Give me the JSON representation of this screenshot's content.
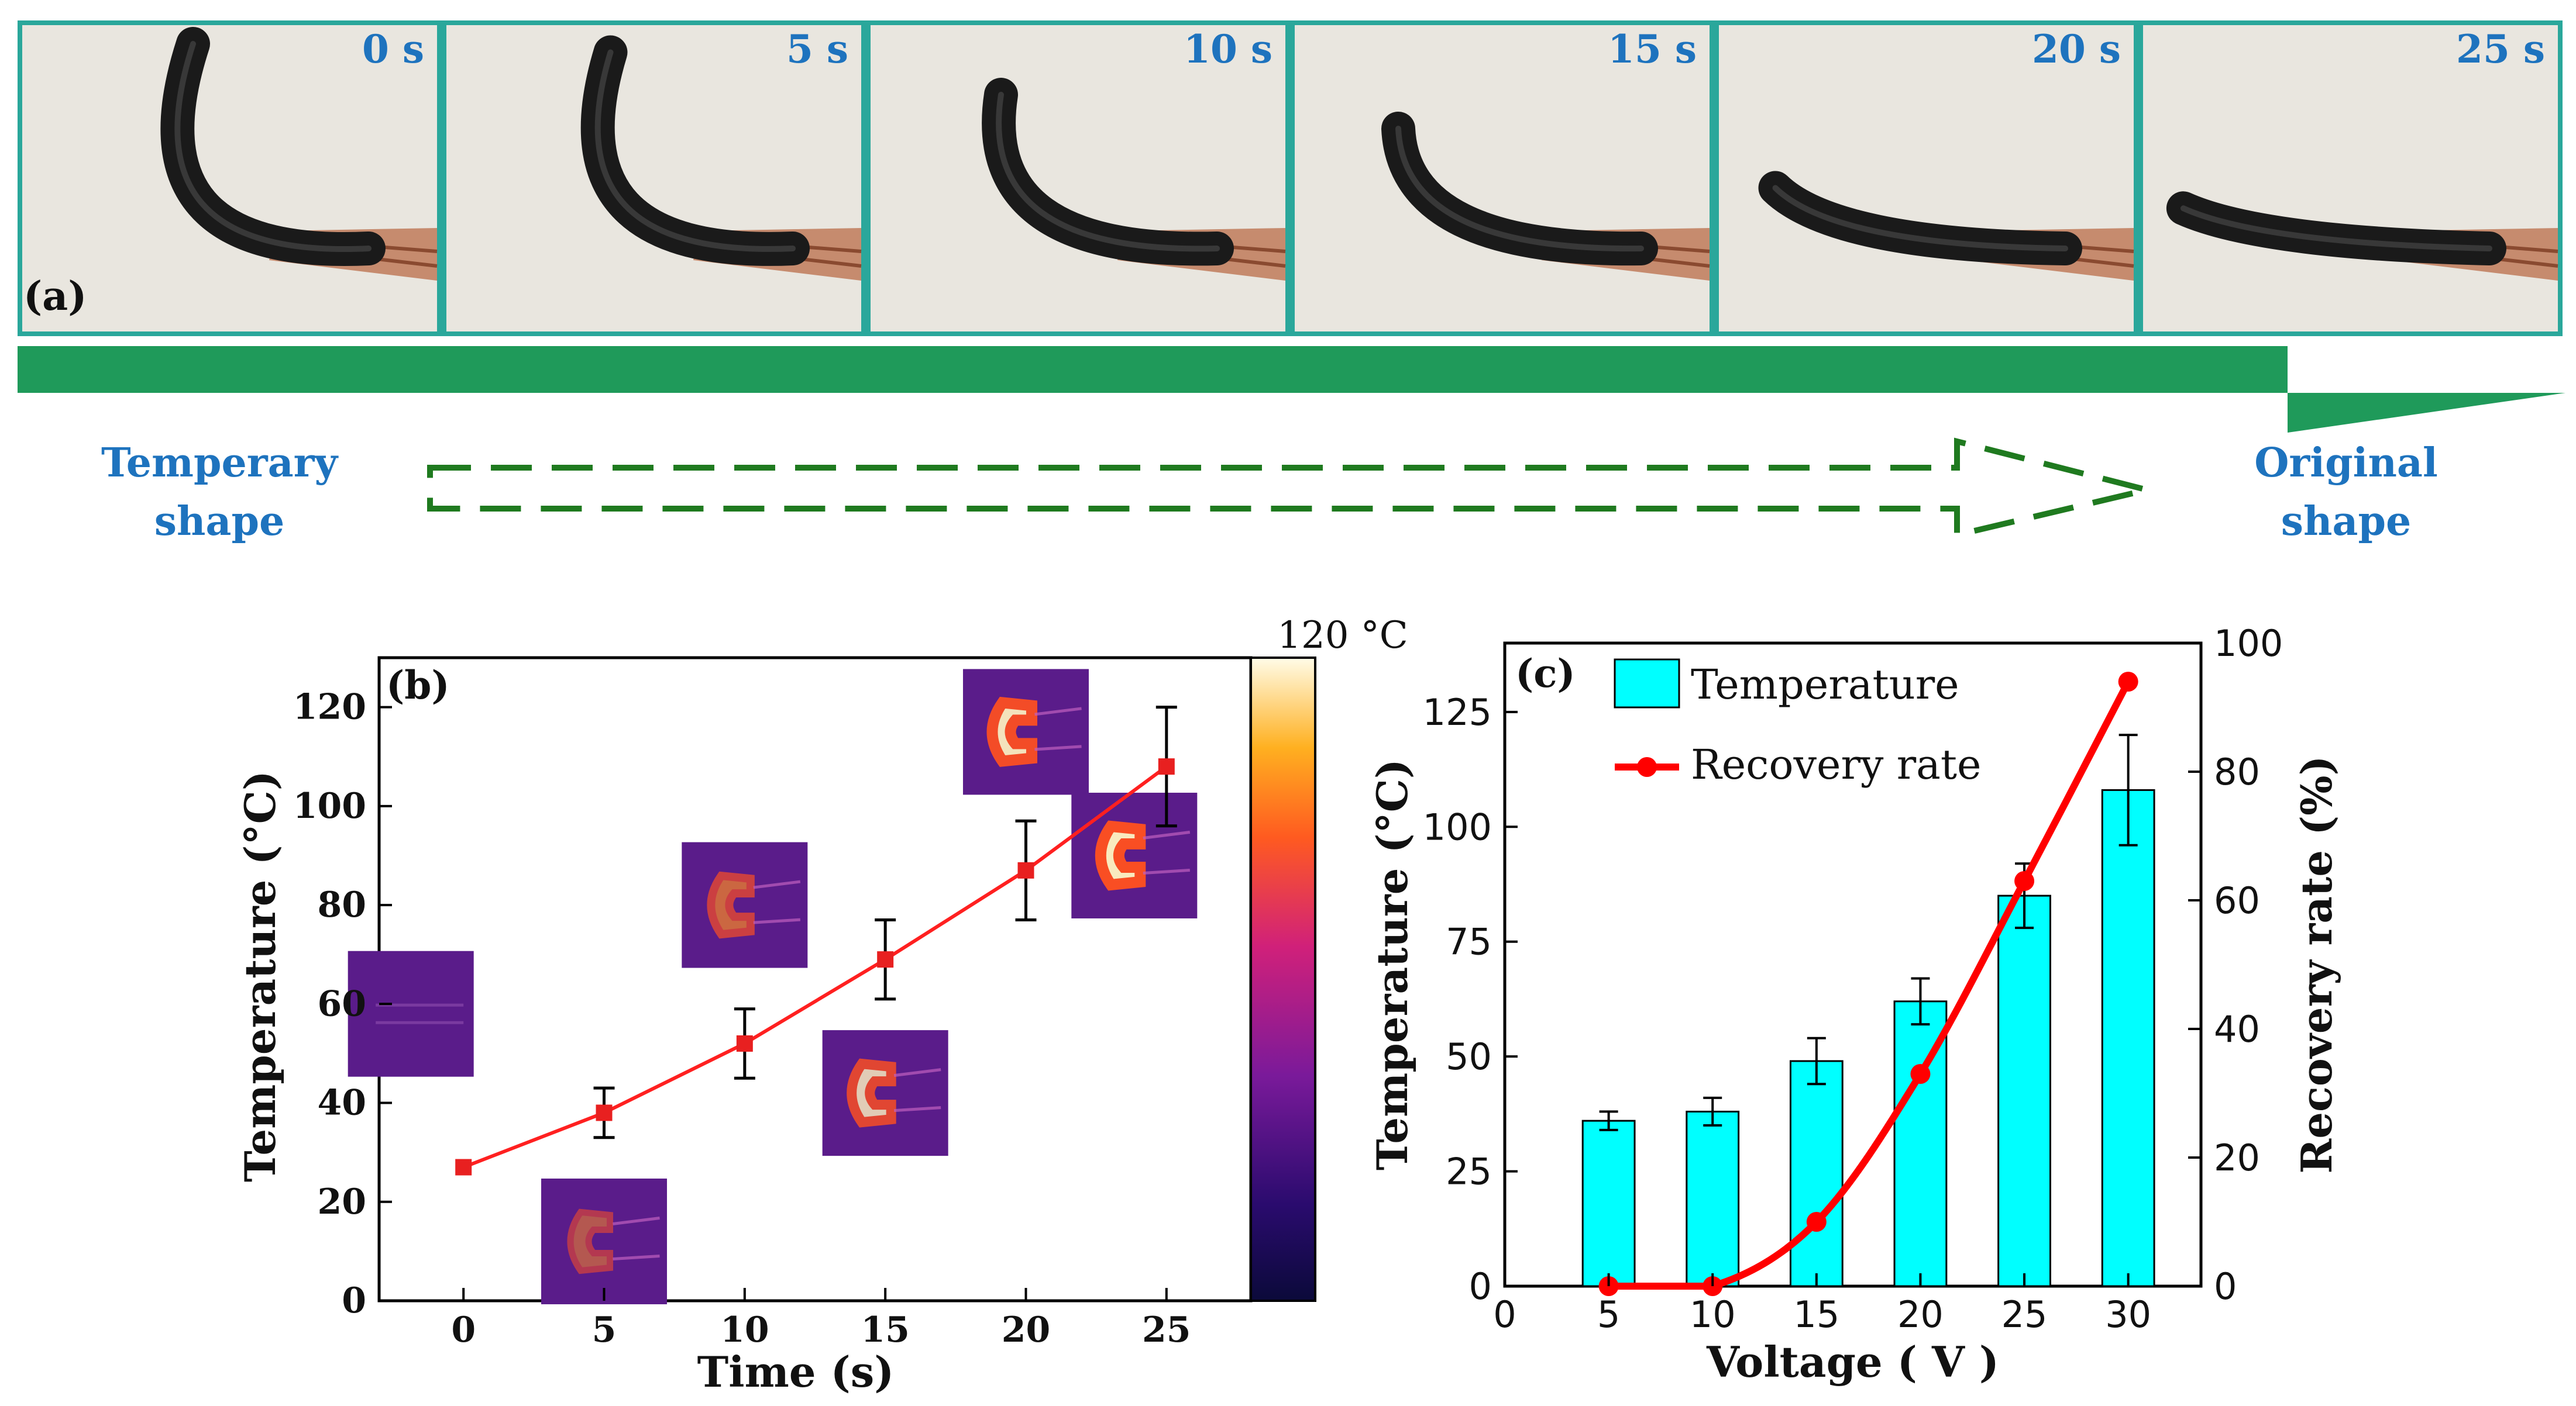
{
  "panel_a": {
    "label": "(a)",
    "frame_times": [
      "0 s",
      "5 s",
      "10 s",
      "15 s",
      "20 s",
      "25 s"
    ],
    "bend_fraction": [
      0.0,
      0.05,
      0.3,
      0.5,
      0.85,
      0.97
    ],
    "start_label": [
      "Temperary",
      "shape"
    ],
    "end_label": [
      "Original",
      "shape"
    ],
    "colors": {
      "frame_border": "#2aa79b",
      "arrow": "#1f9a5a",
      "dashed": "#1f7a1f",
      "time_text": "#1e73be",
      "label_text": "#1e73be",
      "paper": "#e9e6df"
    }
  },
  "chart_data": [
    {
      "id": "b",
      "type": "line",
      "panel_label": "(b)",
      "x": [
        0,
        5,
        10,
        15,
        20,
        25
      ],
      "values": [
        27,
        38,
        52,
        69,
        87,
        108
      ],
      "errors": [
        0,
        5,
        7,
        8,
        10,
        12
      ],
      "xlabel": "Time (s)",
      "ylabel": "Temperature (°C)",
      "xticks": [
        0,
        5,
        10,
        15,
        20,
        25
      ],
      "yticks": [
        0,
        20,
        40,
        60,
        80,
        100,
        120
      ],
      "xlim": [
        -3,
        28
      ],
      "ylim": [
        0,
        130
      ],
      "colorbar_label": "120 °C",
      "thermal_intensity": [
        0.05,
        0.35,
        0.55,
        0.75,
        0.9,
        0.95
      ],
      "colors": {
        "line": "#ff2020",
        "marker": "#e82020",
        "error": "#000000"
      }
    },
    {
      "id": "c",
      "type": "bar",
      "panel_label": "(c)",
      "categories": [
        5,
        10,
        15,
        20,
        25,
        30
      ],
      "series": [
        {
          "name": "Temperature",
          "axis": "left",
          "kind": "bar",
          "values": [
            36,
            38,
            49,
            62,
            85,
            108
          ],
          "errors": [
            2,
            3,
            5,
            5,
            7,
            12
          ]
        },
        {
          "name": "Recovery rate",
          "axis": "right",
          "kind": "line",
          "values": [
            0,
            0,
            10,
            33,
            63,
            94
          ]
        }
      ],
      "xlabel": "Voltage ( V )",
      "ylabel": "Temperature (°C)",
      "ylabel_right": "Recovery rate (%)",
      "xticks": [
        0,
        5,
        10,
        15,
        20,
        25,
        30
      ],
      "yticks": [
        0,
        25,
        50,
        75,
        100,
        125
      ],
      "yticks_right": [
        0,
        20,
        40,
        60,
        80,
        100
      ],
      "xlim": [
        0,
        33.5
      ],
      "ylim": [
        0,
        140
      ],
      "ylim_right": [
        0,
        100
      ],
      "legend": [
        "Temperature",
        "Recovery rate"
      ],
      "colors": {
        "bar": "#00ffff",
        "line": "#ff0000",
        "error": "#000000"
      }
    }
  ]
}
